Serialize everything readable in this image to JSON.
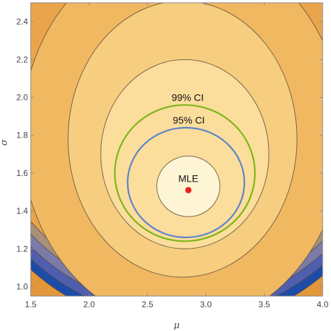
{
  "chart_data": {
    "type": "contour",
    "xlabel": "μ",
    "ylabel": "σ",
    "xlim": [
      1.5,
      4.0
    ],
    "ylim": [
      0.95,
      2.5
    ],
    "x_ticks": [
      "1.5",
      "2.0",
      "2.5",
      "3.0",
      "3.5",
      "4.0"
    ],
    "y_ticks": [
      "1.0",
      "1.2",
      "1.4",
      "1.6",
      "1.8",
      "2.0",
      "2.2",
      "2.4"
    ],
    "grid": false,
    "mle": {
      "mu": 2.85,
      "sigma": 1.51,
      "label": "MLE"
    },
    "region_colors": [
      "#e2973b",
      "#eaa54c",
      "#f1b862",
      "#f7cd80",
      "#fbdd9c",
      "#fde9b5",
      "#fef5d4"
    ],
    "outer_bands": [
      "#a8907a",
      "#7c7ba8",
      "#4f5eae",
      "#1d4ba8"
    ],
    "contours": [
      {
        "kind": "level",
        "mu_center": 2.8,
        "sigma_center": 1.8,
        "mu_halfwidth": 1.38,
        "sigma_halfwidth": 1.01
      },
      {
        "kind": "level",
        "mu_center": 2.8,
        "sigma_center": 1.78,
        "mu_halfwidth": 0.98,
        "sigma_halfwidth": 0.73
      },
      {
        "kind": "level",
        "mu_center": 2.82,
        "sigma_center": 1.7,
        "mu_halfwidth": 0.72,
        "sigma_halfwidth": 0.5
      },
      {
        "kind": "ci",
        "label": "99% CI",
        "color": "#7cb518",
        "mu_center": 2.82,
        "sigma_center": 1.6,
        "mu_halfwidth": 0.6,
        "sigma_halfwidth": 0.36
      },
      {
        "kind": "ci",
        "label": "95% CI",
        "color": "#5b83c9",
        "mu_center": 2.83,
        "sigma_center": 1.55,
        "mu_halfwidth": 0.5,
        "sigma_halfwidth": 0.29
      },
      {
        "kind": "level",
        "mu_center": 2.85,
        "sigma_center": 1.53,
        "mu_halfwidth": 0.27,
        "sigma_halfwidth": 0.16
      }
    ]
  }
}
